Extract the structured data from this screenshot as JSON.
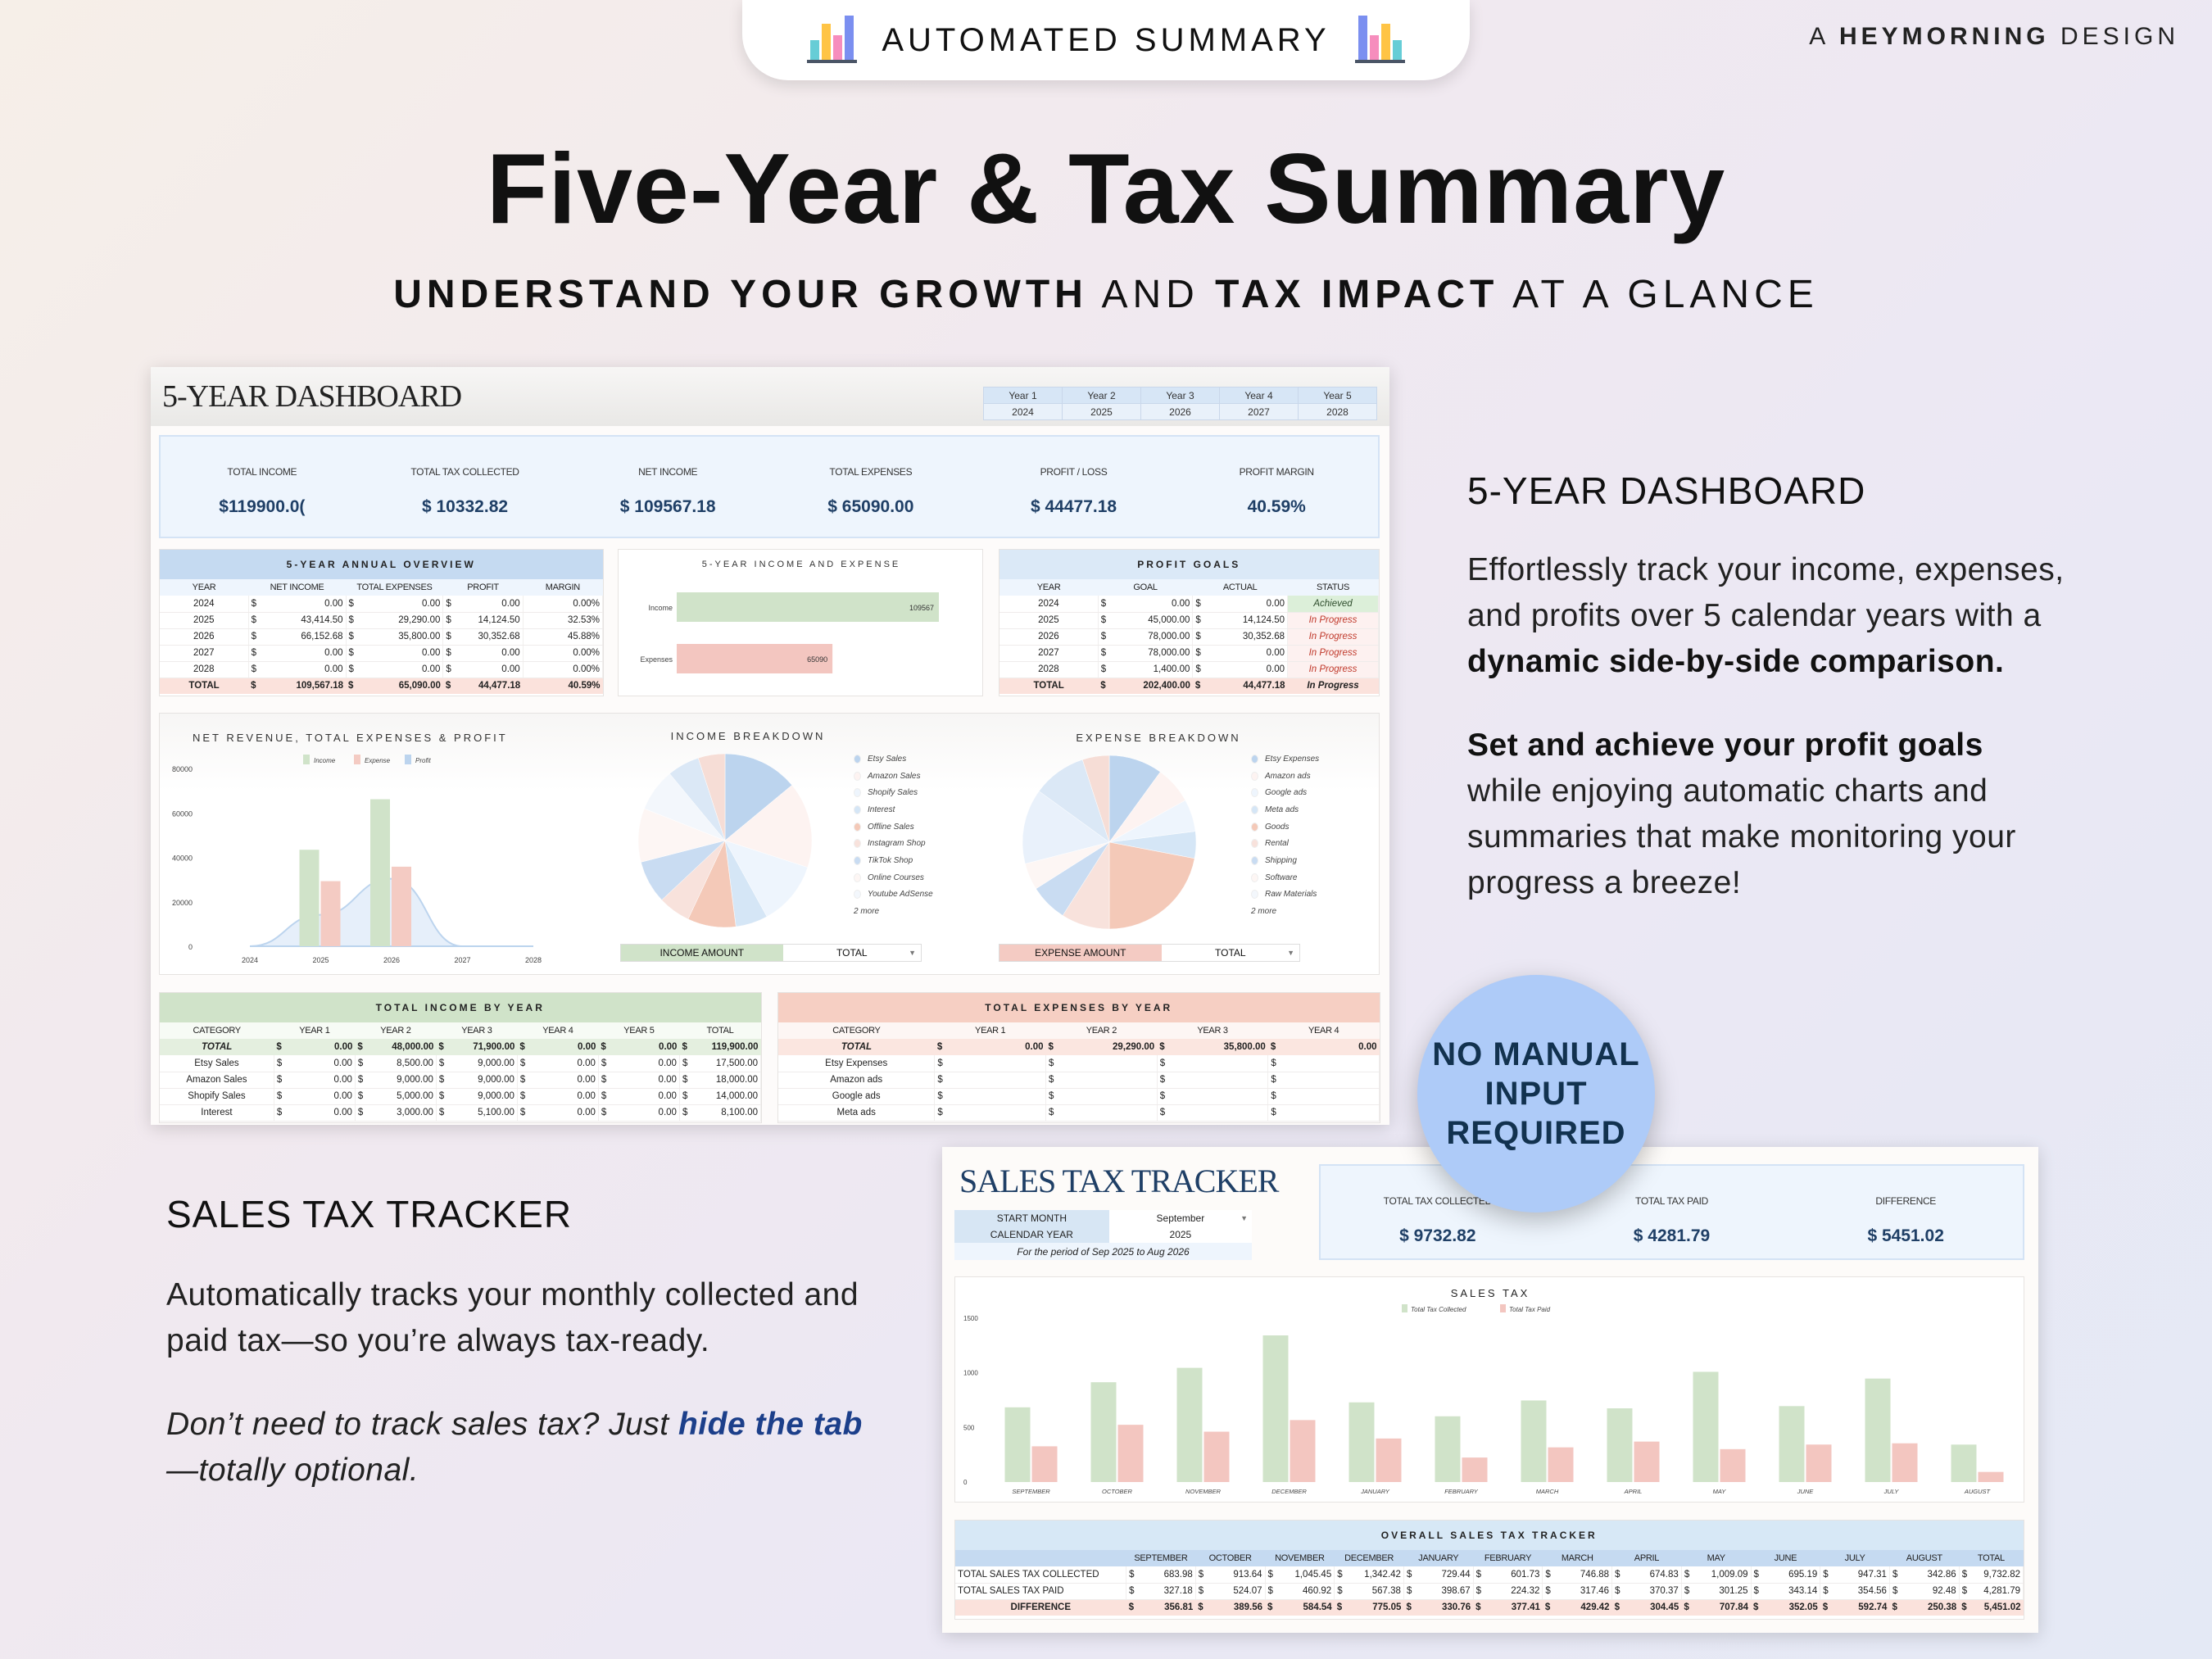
{
  "banner": {
    "label": "AUTOMATED SUMMARY",
    "icon": "bar-chart-icon"
  },
  "brand": {
    "prefix": "A",
    "name": "HEYMORNING",
    "suffix": "DESIGN"
  },
  "headline": "Five-Year & Tax Summary",
  "subheadline": {
    "b1": "UNDERSTAND YOUR GROWTH",
    "t1": " AND ",
    "b2": "TAX IMPACT",
    "t2": " AT A GLANCE"
  },
  "right_copy": {
    "heading": "5-YEAR DASHBOARD",
    "p1_text": "Effortlessly track your income, expenses, and profits over 5 calendar years with a ",
    "p1_bold": "dynamic side-by-side comparison.",
    "p2_bold": "Set and achieve your profit goals",
    "p2_text": " while enjoying automatic charts and summaries that make monitoring your progress a breeze!"
  },
  "left_copy": {
    "heading": "SALES TAX TRACKER",
    "p1": "Automatically tracks your monthly collected and paid tax—so you’re always tax-ready.",
    "p2_a": "Don’t need to track sales tax? Just ",
    "p2_link": "hide the tab",
    "p2_b": "—totally optional."
  },
  "badge": {
    "l1": "NO MANUAL",
    "l2": "INPUT",
    "l3": "REQUIRED"
  },
  "currency": "$",
  "colors": {
    "income": "#d0e3c9",
    "expense": "#f4cbc3",
    "profit": "#bcd4ee",
    "navy": "#1f3f66",
    "badge": "#aecbf8"
  },
  "dashboard": {
    "title": "5-YEAR DASHBOARD",
    "years": [
      {
        "label": "Year 1",
        "year": "2024"
      },
      {
        "label": "Year 2",
        "year": "2025"
      },
      {
        "label": "Year 3",
        "year": "2026"
      },
      {
        "label": "Year 4",
        "year": "2027"
      },
      {
        "label": "Year 5",
        "year": "2028"
      }
    ],
    "kpis": [
      {
        "label": "TOTAL INCOME",
        "value": "$119900.0("
      },
      {
        "label": "TOTAL TAX COLLECTED",
        "value": "$ 10332.82"
      },
      {
        "label": "NET INCOME",
        "value": "$ 109567.18"
      },
      {
        "label": "TOTAL EXPENSES",
        "value": "$ 65090.00"
      },
      {
        "label": "PROFIT / LOSS",
        "value": "$ 44477.18"
      },
      {
        "label": "PROFIT MARGIN",
        "value": "40.59%"
      }
    ],
    "annual_overview": {
      "title": "5-YEAR ANNUAL OVERVIEW",
      "headers": [
        "YEAR",
        "NET INCOME",
        "TOTAL EXPENSES",
        "PROFIT",
        "MARGIN"
      ],
      "rows": [
        [
          "2024",
          "0.00",
          "0.00",
          "0.00",
          "0.00%"
        ],
        [
          "2025",
          "43,414.50",
          "29,290.00",
          "14,124.50",
          "32.53%"
        ],
        [
          "2026",
          "66,152.68",
          "35,800.00",
          "30,352.68",
          "45.88%"
        ],
        [
          "2027",
          "0.00",
          "0.00",
          "0.00",
          "0.00%"
        ],
        [
          "2028",
          "0.00",
          "0.00",
          "0.00",
          "0.00%"
        ]
      ],
      "total": [
        "TOTAL",
        "109,567.18",
        "65,090.00",
        "44,477.18",
        "40.59%"
      ]
    },
    "income_expense_chart": {
      "title": "5-YEAR INCOME AND EXPENSE",
      "bars": [
        {
          "label": "Income",
          "value": 109567
        },
        {
          "label": "Expenses",
          "value": 65090
        }
      ]
    },
    "profit_goals": {
      "title": "PROFIT GOALS",
      "headers": [
        "YEAR",
        "GOAL",
        "ACTUAL",
        "STATUS"
      ],
      "rows": [
        [
          "2024",
          "0.00",
          "0.00",
          "Achieved"
        ],
        [
          "2025",
          "45,000.00",
          "14,124.50",
          "In Progress"
        ],
        [
          "2026",
          "78,000.00",
          "30,352.68",
          "In Progress"
        ],
        [
          "2027",
          "78,000.00",
          "0.00",
          "In Progress"
        ],
        [
          "2028",
          "1,400.00",
          "0.00",
          "In Progress"
        ]
      ],
      "total": [
        "TOTAL",
        "202,400.00",
        "44,477.18",
        "In Progress"
      ]
    },
    "income_breakdown": {
      "title": "INCOME BREAKDOWN",
      "legend": [
        {
          "name": "Etsy Sales",
          "color": "#bcd4ee"
        },
        {
          "name": "Amazon Sales",
          "color": "#fdf3f1"
        },
        {
          "name": "Shopify Sales",
          "color": "#eef5fd"
        },
        {
          "name": "Interest",
          "color": "#d5e6f6"
        },
        {
          "name": "Offline Sales",
          "color": "#f4c9b8"
        },
        {
          "name": "Instagram Shop",
          "color": "#f8e2dc"
        },
        {
          "name": "TikTok Shop",
          "color": "#c9dcf2"
        },
        {
          "name": "Online Courses",
          "color": "#fdf6f4"
        },
        {
          "name": "Youtube AdSense",
          "color": "#f3f7fc"
        }
      ],
      "more": "2 more",
      "slices_est_pct": [
        14,
        16,
        12,
        6,
        9,
        6,
        8,
        10,
        8,
        6,
        5
      ],
      "slice_colors": [
        "#bcd4ee",
        "#fdf3f1",
        "#eef5fd",
        "#d5e6f6",
        "#f4c9b8",
        "#f8e2dc",
        "#c9dcf2",
        "#fdf6f4",
        "#f3f7fc",
        "#dbe8f6",
        "#f6ddd6"
      ],
      "selector": {
        "label": "INCOME AMOUNT",
        "value": "TOTAL"
      }
    },
    "expense_breakdown": {
      "title": "EXPENSE BREAKDOWN",
      "legend": [
        {
          "name": "Etsy Expenses",
          "color": "#bcd4ee"
        },
        {
          "name": "Amazon ads",
          "color": "#fdf3f1"
        },
        {
          "name": "Google ads",
          "color": "#eef5fd"
        },
        {
          "name": "Meta ads",
          "color": "#d5e6f6"
        },
        {
          "name": "Goods",
          "color": "#f4c9b8"
        },
        {
          "name": "Rental",
          "color": "#f8e2dc"
        },
        {
          "name": "Shipping",
          "color": "#c9dcf2"
        },
        {
          "name": "Software",
          "color": "#fdf6f4"
        },
        {
          "name": "Raw Materials",
          "color": "#f3f7fc"
        }
      ],
      "more": "2 more",
      "slices_est_pct": [
        10,
        7,
        6,
        5,
        22,
        9,
        7,
        5,
        14,
        10,
        5
      ],
      "slice_colors": [
        "#bcd4ee",
        "#fdf3f1",
        "#eef5fd",
        "#d5e6f6",
        "#f4c9b8",
        "#f8e2dc",
        "#c9dcf2",
        "#fdf6f4",
        "#e9f1fb",
        "#dbe8f6",
        "#f6ddd6"
      ],
      "selector": {
        "label": "EXPENSE AMOUNT",
        "value": "TOTAL"
      }
    },
    "total_income_by_year": {
      "title": "TOTAL INCOME BY YEAR",
      "headers": [
        "CATEGORY",
        "YEAR 1",
        "YEAR 2",
        "YEAR 3",
        "YEAR 4",
        "YEAR 5",
        "TOTAL"
      ],
      "total": [
        "TOTAL",
        "0.00",
        "48,000.00",
        "71,900.00",
        "0.00",
        "0.00",
        "119,900.00"
      ],
      "rows": [
        [
          "Etsy Sales",
          "0.00",
          "8,500.00",
          "9,000.00",
          "0.00",
          "0.00",
          "17,500.00"
        ],
        [
          "Amazon Sales",
          "0.00",
          "9,000.00",
          "9,000.00",
          "0.00",
          "0.00",
          "18,000.00"
        ],
        [
          "Shopify Sales",
          "0.00",
          "5,000.00",
          "9,000.00",
          "0.00",
          "0.00",
          "14,000.00"
        ],
        [
          "Interest",
          "0.00",
          "3,000.00",
          "5,100.00",
          "0.00",
          "0.00",
          "8,100.00"
        ]
      ]
    },
    "total_expenses_by_year": {
      "title": "TOTAL EXPENSES BY YEAR",
      "headers": [
        "CATEGORY",
        "YEAR 1",
        "YEAR 2",
        "YEAR 3",
        "YEAR 4"
      ],
      "total": [
        "TOTAL",
        "0.00",
        "29,290.00",
        "35,800.00",
        "0.00"
      ],
      "rows": [
        [
          "Etsy Expenses",
          "",
          "",
          "",
          ""
        ],
        [
          "Amazon ads",
          "",
          "",
          "",
          ""
        ],
        [
          "Google ads",
          "",
          "",
          "",
          ""
        ],
        [
          "Meta ads",
          "",
          "",
          "",
          ""
        ]
      ]
    }
  },
  "chart_data": [
    {
      "type": "bar",
      "title": "NET REVENUE, TOTAL EXPENSES & PROFIT",
      "categories": [
        "2024",
        "2025",
        "2026",
        "2027",
        "2028"
      ],
      "series": [
        {
          "name": "Income",
          "values": [
            0,
            43414.5,
            66152.68,
            0,
            0
          ]
        },
        {
          "name": "Expense",
          "values": [
            0,
            29290,
            35800,
            0,
            0
          ]
        },
        {
          "name": "Profit",
          "values": [
            0,
            14124.5,
            30352.68,
            0,
            0
          ]
        }
      ],
      "yticks": [
        "0",
        "20000",
        "40000",
        "60000",
        "80000"
      ],
      "ylim": [
        0,
        80000
      ],
      "legend": "top"
    },
    {
      "type": "bar",
      "title": "SALES TAX",
      "categories": [
        "SEPTEMBER",
        "OCTOBER",
        "NOVEMBER",
        "DECEMBER",
        "JANUARY",
        "FEBRUARY",
        "MARCH",
        "APRIL",
        "MAY",
        "JUNE",
        "JULY",
        "AUGUST"
      ],
      "series": [
        {
          "name": "Total Tax Collected",
          "values": [
            683.98,
            913.64,
            1045.45,
            1342.42,
            729.44,
            601.73,
            746.88,
            674.83,
            1009.09,
            695.19,
            947.31,
            342.86
          ]
        },
        {
          "name": "Total Tax Paid",
          "values": [
            327.18,
            524.07,
            460.92,
            567.38,
            398.67,
            224.32,
            317.46,
            370.37,
            301.25,
            343.14,
            354.56,
            92.48
          ]
        }
      ],
      "yticks": [
        "0",
        "500",
        "1000",
        "1500"
      ],
      "ylim": [
        0,
        1500
      ],
      "legend": "top"
    }
  ],
  "sales_tax": {
    "title": "SALES TAX TRACKER",
    "start_month_label": "START MONTH",
    "start_month": "September",
    "calendar_year_label": "CALENDAR YEAR",
    "calendar_year": "2025",
    "period": "For the period of Sep 2025 to Aug 2026",
    "kpis": [
      {
        "label": "TOTAL TAX COLLECTED",
        "value": "$ 9732.82"
      },
      {
        "label": "TOTAL TAX PAID",
        "value": "$ 4281.79"
      },
      {
        "label": "DIFFERENCE",
        "value": "$ 5451.02"
      }
    ],
    "overall": {
      "title": "OVERALL SALES TAX TRACKER",
      "headers": [
        "",
        "SEPTEMBER",
        "OCTOBER",
        "NOVEMBER",
        "DECEMBER",
        "JANUARY",
        "FEBRUARY",
        "MARCH",
        "APRIL",
        "MAY",
        "JUNE",
        "JULY",
        "AUGUST",
        "TOTAL"
      ],
      "rows": [
        [
          "TOTAL SALES TAX COLLECTED",
          "683.98",
          "913.64",
          "1,045.45",
          "1,342.42",
          "729.44",
          "601.73",
          "746.88",
          "674.83",
          "1,009.09",
          "695.19",
          "947.31",
          "342.86",
          "9,732.82"
        ],
        [
          "TOTAL SALES TAX PAID",
          "327.18",
          "524.07",
          "460.92",
          "567.38",
          "398.67",
          "224.32",
          "317.46",
          "370.37",
          "301.25",
          "343.14",
          "354.56",
          "92.48",
          "4,281.79"
        ]
      ],
      "total": [
        "DIFFERENCE",
        "356.81",
        "389.56",
        "584.54",
        "775.05",
        "330.76",
        "377.41",
        "429.42",
        "304.45",
        "707.84",
        "352.05",
        "592.74",
        "250.38",
        "5,451.02"
      ]
    }
  }
}
